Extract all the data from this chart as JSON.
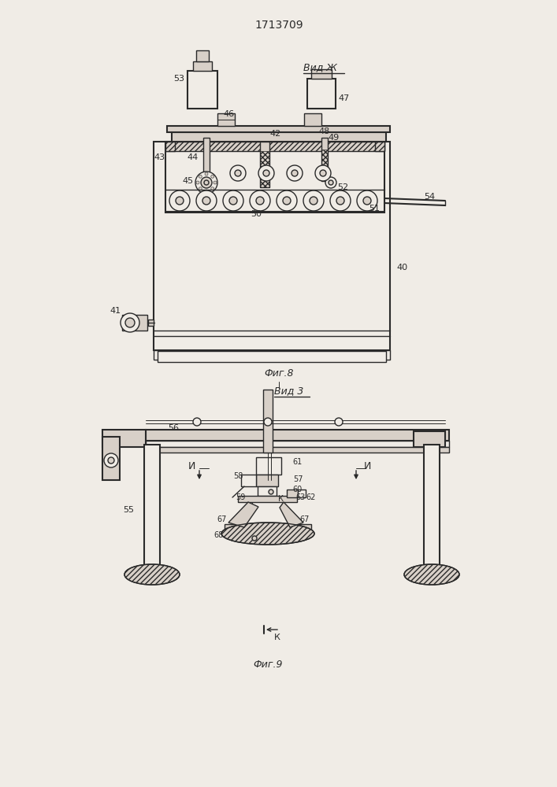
{
  "title": "1713709",
  "fig8_label": "Фиг.8",
  "fig9_label": "Фиг.9",
  "vid_zh_label": "Вид Ж",
  "vid_3_label": "Вид 3",
  "background_color": "#f0ece6",
  "line_color": "#2a2a2a",
  "face_color": "#f0ece6",
  "dark_face": "#d8d0c8"
}
